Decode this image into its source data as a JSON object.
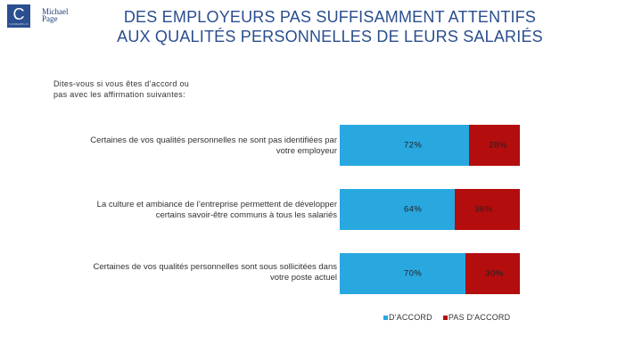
{
  "logos": {
    "brand_letter": "C",
    "brand_sub": "CADREMPLOI",
    "partner_line1": "Michael",
    "partner_line2": "Page"
  },
  "title": {
    "line1": "DES EMPLOYEURS PAS SUFFISAMMENT ATTENTIFS",
    "line2": "AUX QUALITÉS PERSONNELLES DE LEURS SALARIÉS"
  },
  "question": "Dites-vous si vous êtes d’accord ou pas avec les affirmation suivantes:",
  "colors": {
    "agree": "#29a8e0",
    "disagree": "#b40d0d",
    "title": "#2a4e8f"
  },
  "chart_data": {
    "type": "bar",
    "orientation": "horizontal",
    "stacked": true,
    "percent": true,
    "categories": [
      "Certaines de vos qualités personnelles ne sont pas identifiées par votre employeur",
      "La culture et ambiance de l’entreprise permettent de développer certains savoir-être communs à tous les salariés",
      "Certaines de vos qualités personnelles sont sous sollicitées dans votre poste actuel"
    ],
    "series": [
      {
        "name": "D'ACCORD",
        "values": [
          72,
          64,
          70
        ],
        "labels": [
          "72%",
          "64%",
          "70%"
        ]
      },
      {
        "name": "PAS D'ACCORD",
        "values": [
          28,
          36,
          30
        ],
        "labels": [
          "28%",
          "36%",
          "30%"
        ]
      }
    ],
    "xlim": [
      0,
      100
    ],
    "legend": "bottom"
  }
}
